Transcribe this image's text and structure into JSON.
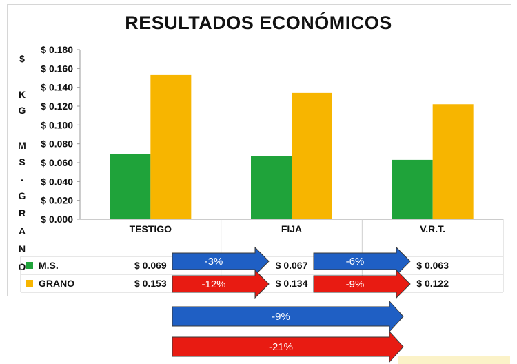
{
  "chart_data": {
    "type": "bar",
    "title": "RESULTADOS ECONÓMICOS",
    "ylabel": "$ KG MS - GRANO",
    "ylabel_chars": [
      "$",
      "K",
      "G",
      "M",
      "S",
      "-",
      "G",
      "R",
      "A",
      "N",
      "O"
    ],
    "categories": [
      "TESTIGO",
      "FIJA",
      "V.R.T."
    ],
    "ylim": [
      0,
      0.18
    ],
    "yticks": [
      0,
      0.02,
      0.04,
      0.06,
      0.08,
      0.1,
      0.12,
      0.14,
      0.16,
      0.18
    ],
    "ytick_labels": [
      "$ 0.000",
      "$ 0.020",
      "$ 0.040",
      "$ 0.060",
      "$ 0.080",
      "$ 0.100",
      "$ 0.120",
      "$ 0.140",
      "$ 0.160",
      "$ 0.180"
    ],
    "legend_position": "data-table-bottom",
    "series": [
      {
        "name": "M.S.",
        "color": "#1fa33a",
        "values": [
          0.069,
          0.067,
          0.063
        ],
        "table_labels": [
          "$ 0.069",
          "$ 0.067",
          "$ 0.063"
        ]
      },
      {
        "name": "GRANO",
        "color": "#f7b500",
        "values": [
          0.153,
          0.134,
          0.122
        ],
        "table_labels": [
          "$ 0.153",
          "$ 0.134",
          "$ 0.122"
        ]
      }
    ],
    "annotations": [
      {
        "text": "-3%",
        "color": "#1f5fc4",
        "row": "M.S.",
        "from": "TESTIGO",
        "to": "FIJA"
      },
      {
        "text": "-6%",
        "color": "#1f5fc4",
        "row": "M.S.",
        "from": "FIJA",
        "to": "V.R.T."
      },
      {
        "text": "-12%",
        "color": "#e81b12",
        "row": "GRANO",
        "from": "TESTIGO",
        "to": "FIJA"
      },
      {
        "text": "-9%",
        "color": "#e81b12",
        "row": "GRANO",
        "from": "FIJA",
        "to": "V.R.T."
      },
      {
        "text": "-9%",
        "color": "#1f5fc4",
        "row": "total-M.S.",
        "from": "TESTIGO",
        "to": "V.R.T."
      },
      {
        "text": "-21%",
        "color": "#e81b12",
        "row": "total-GRANO",
        "from": "TESTIGO",
        "to": "V.R.T."
      }
    ]
  }
}
